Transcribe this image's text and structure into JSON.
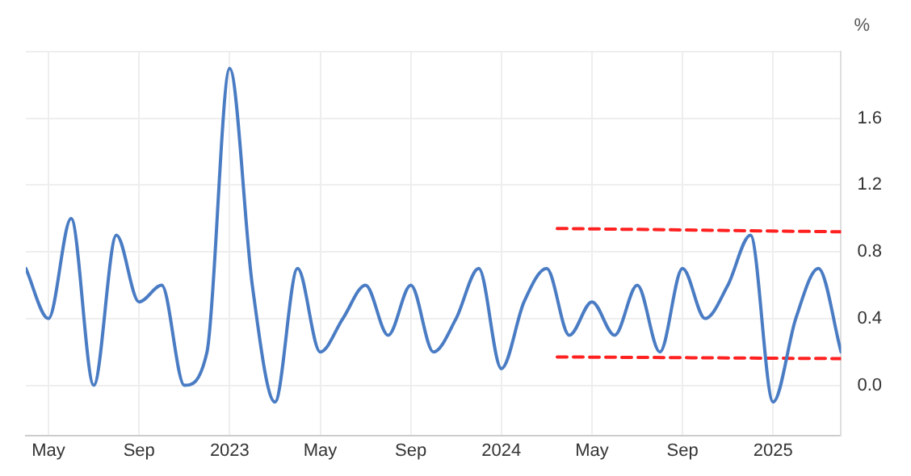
{
  "chart_data": {
    "type": "line",
    "ylabel": "%",
    "x": [
      "2022-04",
      "2022-05",
      "2022-06",
      "2022-07",
      "2022-08",
      "2022-09",
      "2022-10",
      "2022-11",
      "2022-12",
      "2023-01",
      "2023-02",
      "2023-03",
      "2023-04",
      "2023-05",
      "2023-06",
      "2023-07",
      "2023-08",
      "2023-09",
      "2023-10",
      "2023-11",
      "2023-12",
      "2024-01",
      "2024-02",
      "2024-03",
      "2024-04",
      "2024-05",
      "2024-06",
      "2024-07",
      "2024-08",
      "2024-09",
      "2024-10",
      "2024-11",
      "2024-12",
      "2025-01",
      "2025-02",
      "2025-03",
      "2025-04"
    ],
    "series": [
      {
        "color": "#4a7cc4",
        "values": [
          0.7,
          0.4,
          1.0,
          0.0,
          0.9,
          0.5,
          0.6,
          0.0,
          0.2,
          1.9,
          0.6,
          -0.1,
          0.7,
          0.2,
          0.4,
          0.6,
          0.3,
          0.6,
          0.2,
          0.4,
          0.7,
          0.1,
          0.5,
          0.7,
          0.3,
          0.5,
          0.3,
          0.6,
          0.2,
          0.7,
          0.4,
          0.6,
          0.9,
          -0.1,
          0.4,
          0.7,
          0.2
        ]
      },
      {
        "type": "line",
        "color": "#ff2020",
        "line_style": "dashed",
        "x": [
          "2024-03-15",
          "2025-04"
        ],
        "values": [
          0.94,
          0.92
        ]
      },
      {
        "type": "line",
        "color": "#ff2020",
        "line_style": "dashed",
        "x": [
          "2024-03-15",
          "2025-04"
        ],
        "values": [
          0.17,
          0.16
        ]
      }
    ],
    "xlim": [
      "2022-04",
      "2025-04"
    ],
    "xticks": [
      {
        "value": "2022-05",
        "label": "May"
      },
      {
        "value": "2022-09",
        "label": "Sep"
      },
      {
        "value": "2023-01",
        "label": "2023"
      },
      {
        "value": "2023-05",
        "label": "May"
      },
      {
        "value": "2023-09",
        "label": "Sep"
      },
      {
        "value": "2024-01",
        "label": "2024"
      },
      {
        "value": "2024-05",
        "label": "May"
      },
      {
        "value": "2024-09",
        "label": "Sep"
      },
      {
        "value": "2025-01",
        "label": "2025"
      }
    ],
    "ylim": [
      -0.3,
      2.0
    ],
    "yticks": [
      {
        "value": 0,
        "label": "0.0"
      },
      0.4,
      0.8,
      1.2,
      1.6,
      {
        "value": 2,
        "label": null
      }
    ],
    "grid": true,
    "marker": "none"
  }
}
